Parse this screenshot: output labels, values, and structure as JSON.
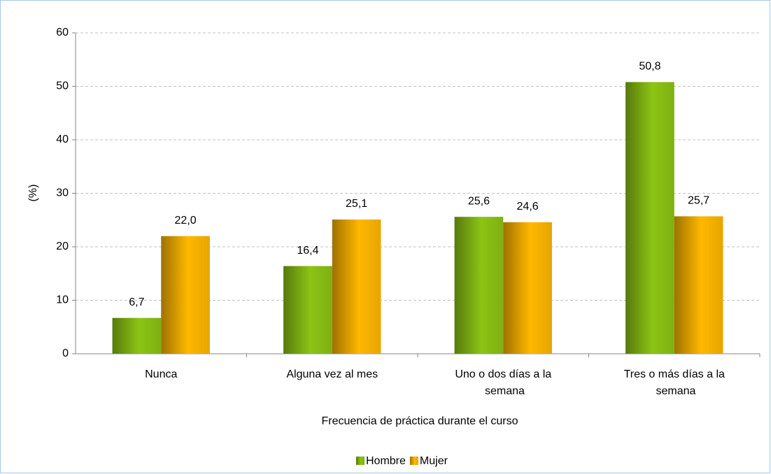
{
  "chart_data": {
    "type": "bar",
    "categories": [
      "Nunca",
      "Alguna vez al mes",
      "Uno o dos días a la semana",
      "Tres o más días a la semana"
    ],
    "series": [
      {
        "name": "Hombre",
        "color": "#8cc414",
        "values": [
          6.7,
          16.4,
          25.6,
          50.8
        ],
        "value_labels": [
          "6,7",
          "16,4",
          "25,6",
          "50,8"
        ]
      },
      {
        "name": "Mujer",
        "color": "#ffb800",
        "values": [
          22.0,
          25.1,
          24.6,
          25.7
        ],
        "value_labels": [
          "22,0",
          "25,1",
          "24,6",
          "25,7"
        ]
      }
    ],
    "ylim": [
      0,
      60
    ],
    "yticks": [
      0,
      10,
      20,
      30,
      40,
      50,
      60
    ],
    "grid": true,
    "xlabel": "Frecuencia de práctica durante el curso",
    "ylabel": "(%)",
    "legend": "bottom"
  }
}
